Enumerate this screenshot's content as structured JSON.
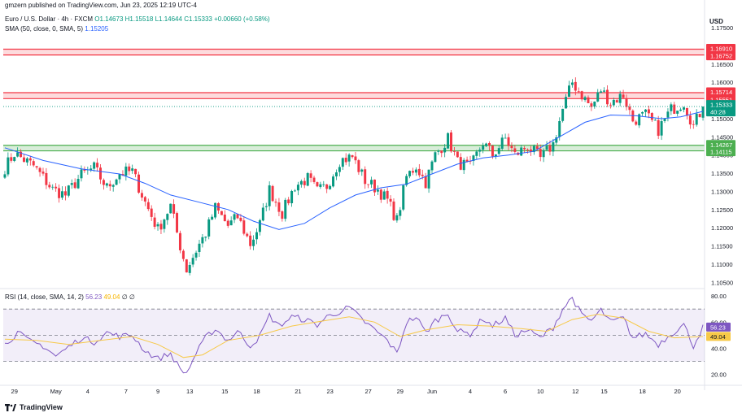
{
  "header": {
    "published_by": "gmzern published on TradingView.com, Jun 23, 2025 12:19 UTC-4",
    "symbol": "Euro / U.S. Dollar · 4h · FXCM",
    "ohlc": {
      "o": "O1.14673",
      "h": "H1.15518",
      "l": "L1.14644",
      "c": "C1.15333",
      "change": "+0.00660 (+0.58%)"
    },
    "sma_label": "SMA (50, close, 0, SMA, 5)",
    "sma_value": "1.15205",
    "rsi_label": "RSI (14, close, SMA, 14, 2)",
    "rsi_value": "56.23",
    "rsi_sma_value": "49.04",
    "rsi_extra": "∅ ∅"
  },
  "currency": "USD",
  "footer": {
    "brand": "TradingView"
  },
  "colors": {
    "up": "#089981",
    "down": "#f23645",
    "sma": "#2962ff",
    "rsi": "#7e57c2",
    "rsi_sma": "#f7c948",
    "support": "#4caf50",
    "resistance": "#f23645"
  },
  "chart_data": [
    {
      "type": "candlestick",
      "price_axis": {
        "ticks": [
          "1.17500",
          "1.17000",
          "1.16500",
          "1.16000",
          "1.15500",
          "1.15000",
          "1.14500",
          "1.14000",
          "1.13500",
          "1.13000",
          "1.12500",
          "1.12000",
          "1.11500",
          "1.11000",
          "1.10500"
        ],
        "ylim": [
          1.1035,
          1.1795
        ]
      },
      "time_axis": {
        "ticks": [
          {
            "label": "29",
            "i": 3
          },
          {
            "label": "May",
            "i": 16
          },
          {
            "label": "4",
            "i": 26
          },
          {
            "label": "7",
            "i": 38
          },
          {
            "label": "9",
            "i": 48
          },
          {
            "label": "13",
            "i": 58
          },
          {
            "label": "15",
            "i": 69
          },
          {
            "label": "18",
            "i": 79
          },
          {
            "label": "21",
            "i": 92
          },
          {
            "label": "23",
            "i": 102
          },
          {
            "label": "27",
            "i": 114
          },
          {
            "label": "29",
            "i": 124
          },
          {
            "label": "Jun",
            "i": 134
          },
          {
            "label": "4",
            "i": 146
          },
          {
            "label": "6",
            "i": 157
          },
          {
            "label": "10",
            "i": 168
          },
          {
            "label": "12",
            "i": 179
          },
          {
            "label": "15",
            "i": 188
          },
          {
            "label": "18",
            "i": 200
          },
          {
            "label": "20",
            "i": 211
          }
        ],
        "count": 220
      },
      "zones": [
        {
          "kind": "resistance",
          "top": "1.16910",
          "bottom": "1.16752"
        },
        {
          "kind": "resistance",
          "top": "1.15714",
          "bottom": "1.15551"
        },
        {
          "kind": "support",
          "top": "1.14267",
          "bottom": "1.14115"
        }
      ],
      "last_price": "1.15333",
      "countdown": "40:28",
      "sma_last": "1.15205",
      "anchors": [
        [
          0,
          1.1365
        ],
        [
          3,
          1.1405
        ],
        [
          9,
          1.137
        ],
        [
          15,
          1.1305
        ],
        [
          19,
          1.129
        ],
        [
          24,
          1.1345
        ],
        [
          28,
          1.1365
        ],
        [
          32,
          1.131
        ],
        [
          36,
          1.135
        ],
        [
          40,
          1.1355
        ],
        [
          44,
          1.127
        ],
        [
          48,
          1.1195
        ],
        [
          52,
          1.126
        ],
        [
          55,
          1.115
        ],
        [
          57,
          1.1085
        ],
        [
          61,
          1.1155
        ],
        [
          63,
          1.1185
        ],
        [
          66,
          1.1255
        ],
        [
          70,
          1.1205
        ],
        [
          73,
          1.123
        ],
        [
          77,
          1.1155
        ],
        [
          80,
          1.121
        ],
        [
          83,
          1.1305
        ],
        [
          87,
          1.124
        ],
        [
          91,
          1.1315
        ],
        [
          95,
          1.1335
        ],
        [
          98,
          1.13
        ],
        [
          101,
          1.1315
        ],
        [
          105,
          1.1385
        ],
        [
          109,
          1.1395
        ],
        [
          113,
          1.133
        ],
        [
          117,
          1.1305
        ],
        [
          120,
          1.1275
        ],
        [
          123,
          1.122
        ],
        [
          126,
          1.134
        ],
        [
          129,
          1.137
        ],
        [
          132,
          1.1325
        ],
        [
          135,
          1.14
        ],
        [
          139,
          1.1445
        ],
        [
          142,
          1.138
        ],
        [
          146,
          1.1365
        ],
        [
          150,
          1.1435
        ],
        [
          153,
          1.14
        ],
        [
          157,
          1.1445
        ],
        [
          160,
          1.14
        ],
        [
          164,
          1.1425
        ],
        [
          168,
          1.139
        ],
        [
          172,
          1.143
        ],
        [
          175,
          1.1525
        ],
        [
          178,
          1.16
        ],
        [
          181,
          1.1565
        ],
        [
          184,
          1.153
        ],
        [
          187,
          1.158
        ],
        [
          190,
          1.1545
        ],
        [
          194,
          1.1565
        ],
        [
          197,
          1.1495
        ],
        [
          201,
          1.151
        ],
        [
          205,
          1.147
        ],
        [
          209,
          1.1525
        ],
        [
          213,
          1.1545
        ],
        [
          216,
          1.148
        ],
        [
          219,
          1.1533
        ]
      ],
      "sma_anchors": [
        [
          0,
          1.142
        ],
        [
          12,
          1.1385
        ],
        [
          24,
          1.1362
        ],
        [
          36,
          1.1348
        ],
        [
          44,
          1.1322
        ],
        [
          52,
          1.129
        ],
        [
          62,
          1.1268
        ],
        [
          70,
          1.125
        ],
        [
          78,
          1.1218
        ],
        [
          86,
          1.1195
        ],
        [
          94,
          1.1212
        ],
        [
          102,
          1.1255
        ],
        [
          110,
          1.129
        ],
        [
          118,
          1.131
        ],
        [
          126,
          1.132
        ],
        [
          134,
          1.1348
        ],
        [
          142,
          1.1375
        ],
        [
          150,
          1.1392
        ],
        [
          158,
          1.14
        ],
        [
          166,
          1.141
        ],
        [
          174,
          1.145
        ],
        [
          182,
          1.149
        ],
        [
          190,
          1.151
        ],
        [
          198,
          1.1508
        ],
        [
          206,
          1.15
        ],
        [
          212,
          1.1505
        ],
        [
          219,
          1.152
        ]
      ]
    },
    {
      "type": "line",
      "name": "RSI",
      "y_axis": {
        "ticks": [
          "80.00",
          "60.00",
          "40.00",
          "20.00"
        ],
        "ylim": [
          13,
          85
        ]
      },
      "levels": [
        70,
        50,
        30
      ],
      "rsi_anchors": [
        [
          0,
          43
        ],
        [
          4,
          52
        ],
        [
          8,
          45
        ],
        [
          12,
          42
        ],
        [
          16,
          34
        ],
        [
          20,
          41
        ],
        [
          24,
          48
        ],
        [
          28,
          45
        ],
        [
          32,
          52
        ],
        [
          36,
          49
        ],
        [
          40,
          50
        ],
        [
          44,
          38
        ],
        [
          48,
          32
        ],
        [
          52,
          36
        ],
        [
          55,
          24
        ],
        [
          57,
          21
        ],
        [
          60,
          36
        ],
        [
          63,
          48
        ],
        [
          66,
          55
        ],
        [
          70,
          46
        ],
        [
          73,
          53
        ],
        [
          77,
          42
        ],
        [
          80,
          49
        ],
        [
          83,
          65
        ],
        [
          86,
          57
        ],
        [
          90,
          64
        ],
        [
          94,
          62
        ],
        [
          98,
          58
        ],
        [
          101,
          64
        ],
        [
          105,
          68
        ],
        [
          108,
          71
        ],
        [
          112,
          62
        ],
        [
          116,
          54
        ],
        [
          120,
          46
        ],
        [
          123,
          36
        ],
        [
          126,
          60
        ],
        [
          129,
          64
        ],
        [
          132,
          52
        ],
        [
          135,
          61
        ],
        [
          139,
          67
        ],
        [
          142,
          53
        ],
        [
          146,
          51
        ],
        [
          150,
          63
        ],
        [
          153,
          57
        ],
        [
          157,
          63
        ],
        [
          160,
          50
        ],
        [
          164,
          54
        ],
        [
          168,
          48
        ],
        [
          172,
          56
        ],
        [
          175,
          70
        ],
        [
          178,
          79
        ],
        [
          181,
          65
        ],
        [
          184,
          61
        ],
        [
          187,
          69
        ],
        [
          190,
          60
        ],
        [
          194,
          63
        ],
        [
          197,
          48
        ],
        [
          201,
          51
        ],
        [
          205,
          43
        ],
        [
          209,
          51
        ],
        [
          213,
          58
        ],
        [
          216,
          42
        ],
        [
          219,
          56
        ]
      ],
      "rsi_sma_anchors": [
        [
          0,
          47
        ],
        [
          10,
          46
        ],
        [
          20,
          43
        ],
        [
          30,
          46
        ],
        [
          40,
          49
        ],
        [
          48,
          43
        ],
        [
          56,
          33
        ],
        [
          62,
          35
        ],
        [
          70,
          46
        ],
        [
          80,
          50
        ],
        [
          90,
          57
        ],
        [
          100,
          61
        ],
        [
          108,
          64
        ],
        [
          116,
          60
        ],
        [
          124,
          49
        ],
        [
          132,
          54
        ],
        [
          142,
          58
        ],
        [
          152,
          57
        ],
        [
          162,
          55
        ],
        [
          170,
          53
        ],
        [
          178,
          62
        ],
        [
          186,
          66
        ],
        [
          194,
          63
        ],
        [
          202,
          53
        ],
        [
          210,
          48
        ],
        [
          219,
          49
        ]
      ],
      "last_value": "56.23",
      "sma_last": "49.04"
    }
  ]
}
